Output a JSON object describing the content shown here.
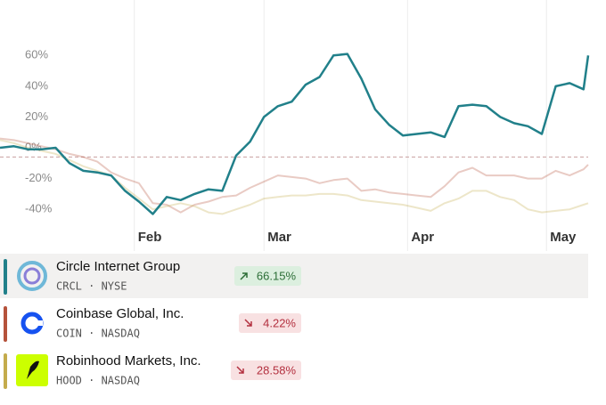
{
  "chart_data": {
    "type": "line",
    "x": [
      3,
      6,
      9,
      12,
      15,
      18,
      21,
      24,
      27,
      30,
      33,
      36,
      39,
      42,
      45,
      48,
      51,
      54,
      57,
      60,
      63,
      66,
      69,
      72,
      75,
      78,
      81,
      84,
      87,
      90,
      93,
      96,
      99,
      102,
      105,
      108,
      111,
      114,
      117,
      120,
      123,
      126,
      129,
      130
    ],
    "xlim": [
      3,
      130
    ],
    "xticks": [
      {
        "value": 32,
        "label": "Feb"
      },
      {
        "value": 60,
        "label": "Mar"
      },
      {
        "value": 91,
        "label": "Apr"
      },
      {
        "value": 121,
        "label": "May"
      }
    ],
    "ylim": [
      -48,
      70
    ],
    "yticks": [
      {
        "value": -40,
        "label": "-40%"
      },
      {
        "value": -20,
        "label": "-20%"
      },
      {
        "value": 0,
        "label": "0%"
      },
      {
        "value": 20,
        "label": "20%"
      },
      {
        "value": 40,
        "label": "40%"
      },
      {
        "value": 60,
        "label": "60%"
      }
    ],
    "reference_line": -6,
    "series": [
      {
        "name": "Circle Internet Group",
        "ticker": "CRCL · NYSE",
        "change": "66.15%",
        "direction": "up",
        "color": "#21808a",
        "faded": false,
        "values": [
          0,
          1,
          -1,
          -1,
          0,
          -10,
          -15,
          -16,
          -18,
          -28,
          -35,
          -43,
          -32,
          -34,
          -30,
          -27,
          -28,
          -5,
          4,
          20,
          27,
          30,
          41,
          46,
          60,
          61,
          45,
          25,
          15,
          8,
          9,
          10,
          7,
          27,
          28,
          27,
          20,
          16,
          14,
          9,
          40,
          42,
          38,
          60
        ]
      },
      {
        "name": "Coinbase Global, Inc.",
        "ticker": "COIN · NASDAQ",
        "change": "4.22%",
        "direction": "down",
        "color": "#b5523b",
        "faded": true,
        "values": [
          6,
          5,
          3,
          1,
          -1,
          -4,
          -6,
          -9,
          -16,
          -20,
          -23,
          -36,
          -37,
          -42,
          -37,
          -35,
          -32,
          -31,
          -26,
          -22,
          -18,
          -19,
          -20,
          -23,
          -21,
          -20,
          -28,
          -27,
          -29,
          -30,
          -31,
          -32,
          -25,
          -16,
          -13,
          -18,
          -18,
          -18,
          -20,
          -20,
          -15,
          -18,
          -14,
          -11
        ]
      },
      {
        "name": "Robinhood Markets, Inc.",
        "ticker": "HOOD · NASDAQ",
        "change": "28.58%",
        "direction": "down",
        "color": "#c4ab4c",
        "faded": true,
        "values": [
          5,
          3,
          0,
          -2,
          -4,
          -8,
          -12,
          -15,
          -18,
          -26,
          -33,
          -40,
          -38,
          -36,
          -38,
          -42,
          -43,
          -40,
          -37,
          -33,
          -32,
          -31,
          -31,
          -30,
          -30,
          -31,
          -34,
          -35,
          -36,
          -37,
          -39,
          -41,
          -36,
          -33,
          -28,
          -28,
          -32,
          -34,
          -40,
          -42,
          -41,
          -40,
          -37,
          -36
        ]
      }
    ]
  }
}
